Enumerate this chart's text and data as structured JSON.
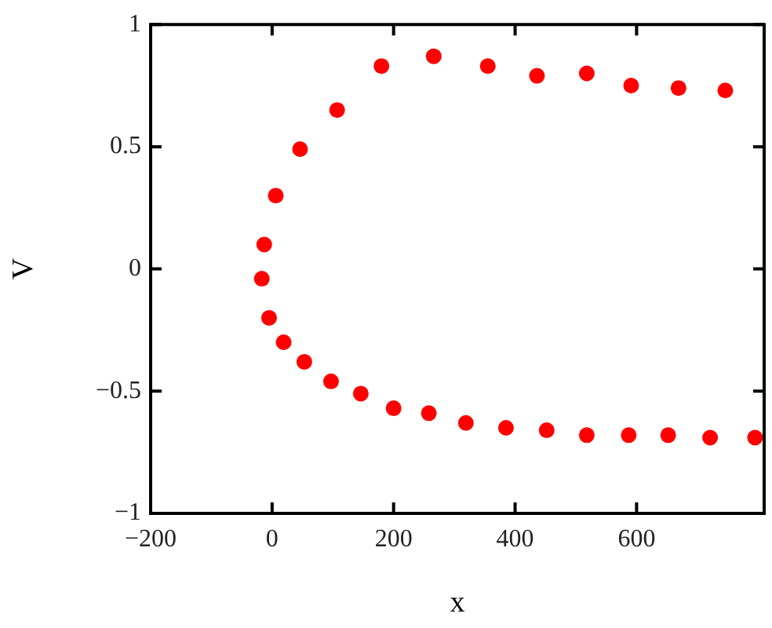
{
  "chart_data": {
    "type": "scatter",
    "xlabel": "x",
    "ylabel": "V",
    "x": [
      -17,
      -13,
      6,
      46,
      107,
      180,
      266,
      355,
      436,
      518,
      591,
      669,
      746,
      -5,
      19,
      53,
      97,
      146,
      200,
      258,
      319,
      385,
      452,
      518,
      587,
      652,
      721,
      795
    ],
    "values": [
      -0.04,
      0.1,
      0.3,
      0.49,
      0.65,
      0.83,
      0.87,
      0.83,
      0.79,
      0.8,
      0.75,
      0.74,
      0.73,
      -0.2,
      -0.3,
      -0.38,
      -0.46,
      -0.51,
      -0.57,
      -0.59,
      -0.63,
      -0.65,
      -0.66,
      -0.68,
      -0.68,
      -0.68,
      -0.69,
      -0.69
    ],
    "color": "#ff0000",
    "marker": "circle",
    "xlim": [
      -200,
      810
    ],
    "xticks": [
      {
        "value": -200,
        "label": "−200"
      },
      0,
      200,
      400,
      600
    ],
    "ylim": [
      -1,
      1
    ],
    "yticks": [
      {
        "value": -1,
        "label": "−1"
      },
      {
        "value": -0.5,
        "label": "−0.5"
      },
      0,
      0.5,
      1
    ]
  }
}
